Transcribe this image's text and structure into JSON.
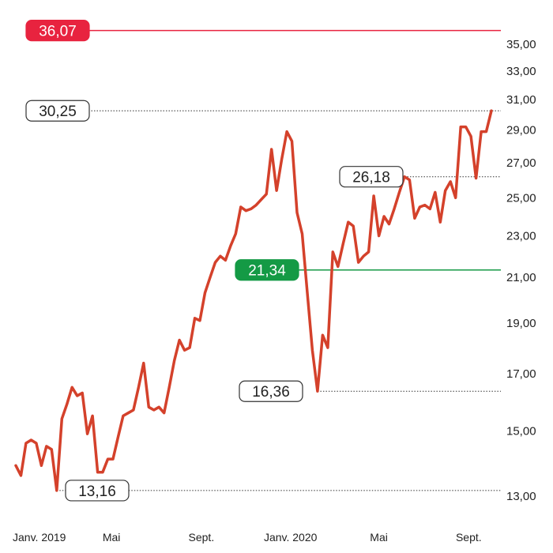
{
  "chart_data": {
    "type": "line",
    "title": "",
    "xlabel": "",
    "ylabel": "",
    "ylim": [
      12.5,
      37
    ],
    "y_scale": "log",
    "y_ticks": [
      "13,00",
      "15,00",
      "17,00",
      "19,00",
      "21,00",
      "23,00",
      "25,00",
      "27,00",
      "29,00",
      "31,00",
      "33,00",
      "35,00"
    ],
    "y_tick_values": [
      13,
      15,
      17,
      19,
      21,
      23,
      25,
      27,
      29,
      31,
      33,
      35
    ],
    "x_ticks": [
      "Janv. 2019",
      "Mai",
      "Sept.",
      "Janv. 2020",
      "Mai",
      "Sept."
    ],
    "x_tick_dates": [
      "2019-01-01",
      "2019-05-01",
      "2019-09-01",
      "2020-01-01",
      "2020-05-01",
      "2020-09-01"
    ],
    "grid": false,
    "series": [
      {
        "color": "#d4412b",
        "points": [
          [
            "2018-12-21",
            13.9
          ],
          [
            "2018-12-28",
            13.6
          ],
          [
            "2019-01-04",
            14.6
          ],
          [
            "2019-01-11",
            14.7
          ],
          [
            "2019-01-18",
            14.6
          ],
          [
            "2019-01-25",
            13.9
          ],
          [
            "2019-02-01",
            14.5
          ],
          [
            "2019-02-08",
            14.4
          ],
          [
            "2019-02-15",
            13.16
          ],
          [
            "2019-02-22",
            15.4
          ],
          [
            "2019-03-01",
            15.9
          ],
          [
            "2019-03-08",
            16.5
          ],
          [
            "2019-03-15",
            16.2
          ],
          [
            "2019-03-22",
            16.3
          ],
          [
            "2019-03-29",
            14.9
          ],
          [
            "2019-04-05",
            15.5
          ],
          [
            "2019-04-12",
            13.7
          ],
          [
            "2019-04-19",
            13.7
          ],
          [
            "2019-04-26",
            14.1
          ],
          [
            "2019-05-03",
            14.1
          ],
          [
            "2019-05-10",
            14.8
          ],
          [
            "2019-05-17",
            15.5
          ],
          [
            "2019-05-24",
            15.6
          ],
          [
            "2019-05-31",
            15.7
          ],
          [
            "2019-06-07",
            16.5
          ],
          [
            "2019-06-14",
            17.4
          ],
          [
            "2019-06-21",
            15.8
          ],
          [
            "2019-06-28",
            15.7
          ],
          [
            "2019-07-05",
            15.8
          ],
          [
            "2019-07-12",
            15.6
          ],
          [
            "2019-07-19",
            16.5
          ],
          [
            "2019-07-26",
            17.5
          ],
          [
            "2019-08-02",
            18.3
          ],
          [
            "2019-08-09",
            17.9
          ],
          [
            "2019-08-16",
            18.0
          ],
          [
            "2019-08-23",
            19.2
          ],
          [
            "2019-08-30",
            19.1
          ],
          [
            "2019-09-06",
            20.3
          ],
          [
            "2019-09-13",
            21.0
          ],
          [
            "2019-09-20",
            21.7
          ],
          [
            "2019-09-27",
            22.0
          ],
          [
            "2019-10-04",
            21.8
          ],
          [
            "2019-10-11",
            22.5
          ],
          [
            "2019-10-18",
            23.1
          ],
          [
            "2019-10-25",
            24.5
          ],
          [
            "2019-11-01",
            24.3
          ],
          [
            "2019-11-08",
            24.4
          ],
          [
            "2019-11-15",
            24.6
          ],
          [
            "2019-11-22",
            24.9
          ],
          [
            "2019-11-29",
            25.2
          ],
          [
            "2019-12-06",
            27.8
          ],
          [
            "2019-12-13",
            25.4
          ],
          [
            "2019-12-20",
            27.2
          ],
          [
            "2019-12-27",
            28.9
          ],
          [
            "2020-01-03",
            28.3
          ],
          [
            "2020-01-10",
            24.2
          ],
          [
            "2020-01-17",
            23.1
          ],
          [
            "2020-01-24",
            20.3
          ],
          [
            "2020-01-31",
            17.9
          ],
          [
            "2020-02-07",
            16.36
          ],
          [
            "2020-02-14",
            18.5
          ],
          [
            "2020-02-21",
            18.0
          ],
          [
            "2020-02-28",
            22.2
          ],
          [
            "2020-03-06",
            21.5
          ],
          [
            "2020-03-13",
            22.6
          ],
          [
            "2020-03-20",
            23.7
          ],
          [
            "2020-03-27",
            23.5
          ],
          [
            "2020-04-03",
            21.7
          ],
          [
            "2020-04-10",
            22.0
          ],
          [
            "2020-04-17",
            22.2
          ],
          [
            "2020-04-24",
            25.1
          ],
          [
            "2020-05-01",
            23.0
          ],
          [
            "2020-05-08",
            24.0
          ],
          [
            "2020-05-15",
            23.6
          ],
          [
            "2020-05-22",
            24.4
          ],
          [
            "2020-05-29",
            25.3
          ],
          [
            "2020-06-05",
            26.18
          ],
          [
            "2020-06-12",
            26.0
          ],
          [
            "2020-06-19",
            23.9
          ],
          [
            "2020-06-26",
            24.5
          ],
          [
            "2020-07-03",
            24.6
          ],
          [
            "2020-07-10",
            24.4
          ],
          [
            "2020-07-17",
            25.3
          ],
          [
            "2020-07-24",
            23.7
          ],
          [
            "2020-07-31",
            25.4
          ],
          [
            "2020-08-07",
            25.9
          ],
          [
            "2020-08-14",
            25.0
          ],
          [
            "2020-08-21",
            29.2
          ],
          [
            "2020-08-28",
            29.2
          ],
          [
            "2020-09-04",
            28.6
          ],
          [
            "2020-09-11",
            26.1
          ],
          [
            "2020-09-18",
            28.9
          ],
          [
            "2020-09-25",
            28.9
          ],
          [
            "2020-10-02",
            30.25
          ]
        ]
      }
    ],
    "reference_lines": [
      {
        "value": 36.07,
        "label": "36,07",
        "line_color": "#e8233f",
        "line_style": "solid",
        "box_fill": "#e8233f",
        "text_color": "#ffffff",
        "box_anchor": "left"
      },
      {
        "value": 21.34,
        "label": "21,34",
        "line_color": "#149a45",
        "line_style": "solid",
        "box_fill": "#149a45",
        "text_color": "#ffffff",
        "box_anchor": "middle"
      }
    ],
    "annotations": [
      {
        "value": 30.25,
        "label": "30,25",
        "date": "2020-10-02",
        "box_anchor": "left"
      },
      {
        "value": 26.18,
        "label": "26,18",
        "date": "2020-06-05",
        "box_anchor": "point"
      },
      {
        "value": 16.36,
        "label": "16,36",
        "date": "2020-02-07",
        "box_anchor": "point"
      },
      {
        "value": 13.16,
        "label": "13,16",
        "date": "2019-02-15",
        "box_anchor": "point"
      }
    ]
  }
}
